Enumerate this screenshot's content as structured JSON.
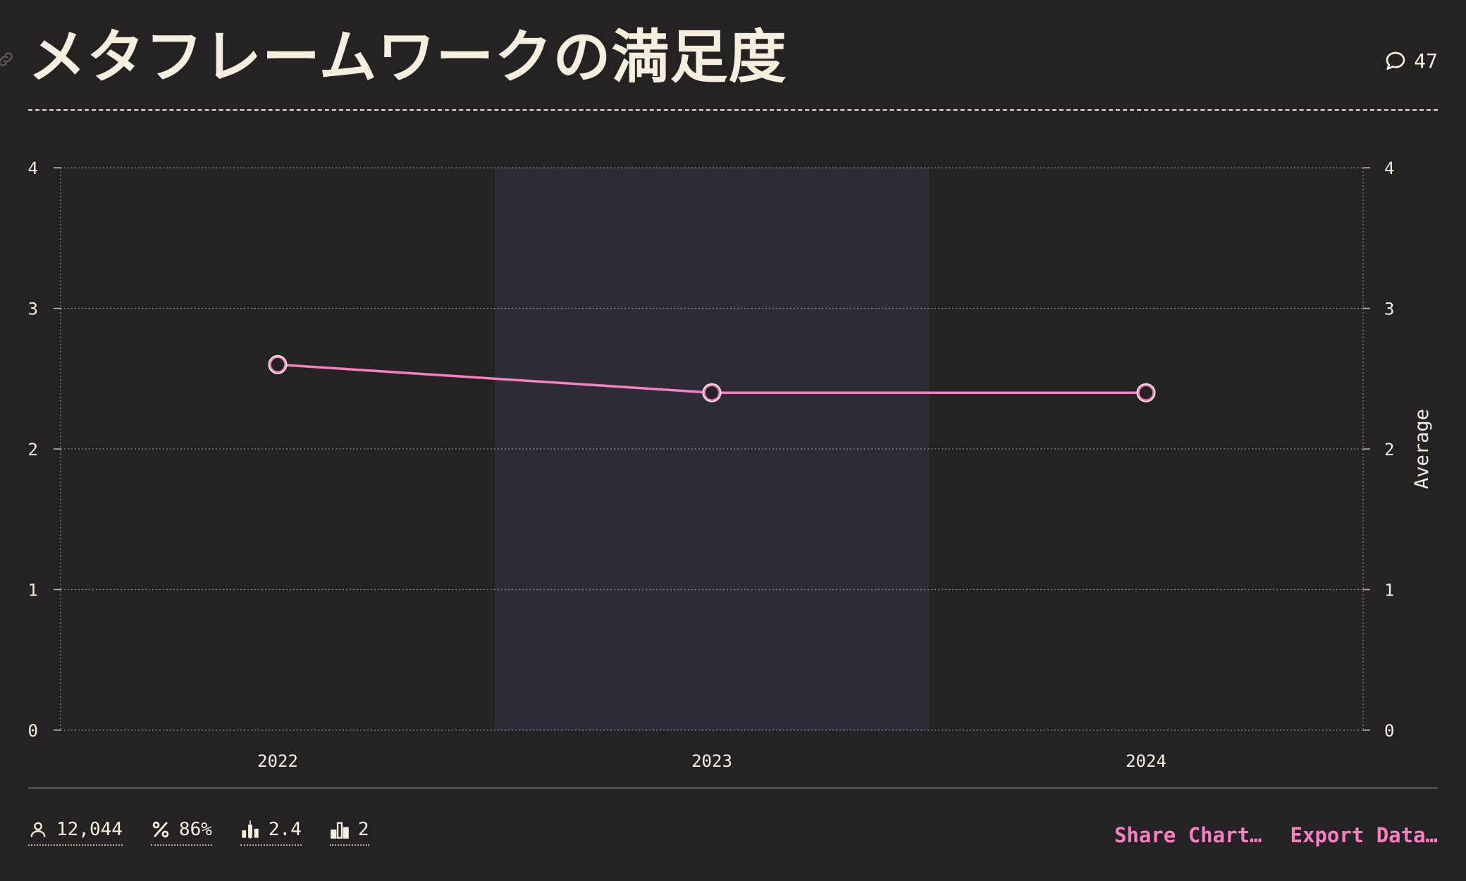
{
  "header": {
    "title": "メタフレームワークの満足度",
    "comment_count": "47"
  },
  "chart_data": {
    "type": "line",
    "categories": [
      "2022",
      "2023",
      "2024"
    ],
    "series": [
      {
        "values": [
          2.6,
          2.4,
          2.4
        ],
        "color": "#f77fc4"
      }
    ],
    "ylim": [
      0,
      4
    ],
    "yticks": [
      "0",
      "1",
      "2",
      "3",
      "4"
    ],
    "y2label": "Average",
    "highlighted_category": "2023",
    "grid": true
  },
  "footer": {
    "stats": [
      {
        "icon": "user-icon",
        "value": "12,044"
      },
      {
        "icon": "percent-icon",
        "value": "86%"
      },
      {
        "icon": "average-bars-icon",
        "value": "2.4"
      },
      {
        "icon": "median-bars-icon",
        "value": "2"
      }
    ],
    "share_label": "Share Chart…",
    "export_label": "Export Data…"
  },
  "colors": {
    "background": "#252223",
    "highlight_band": "#302c37",
    "accent": "#f77fc4",
    "text": "#f6efdf"
  }
}
